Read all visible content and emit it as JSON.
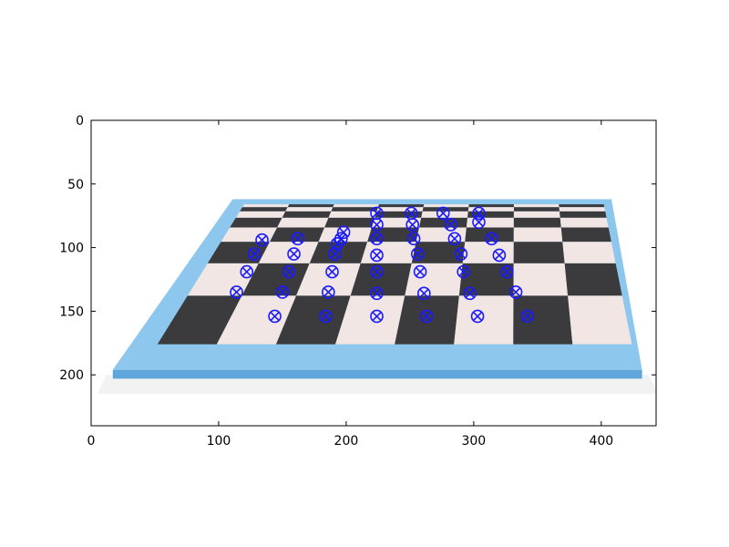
{
  "chart_data": {
    "type": "scatter",
    "title": "",
    "xlabel": "",
    "ylabel": "",
    "xlim": [
      0,
      443
    ],
    "ylim": [
      240,
      0
    ],
    "x_ticks": [
      0,
      100,
      200,
      300,
      400
    ],
    "y_ticks": [
      0,
      50,
      100,
      150,
      200
    ],
    "x_tick_labels": [
      "0",
      "100",
      "200",
      "300",
      "400"
    ],
    "y_tick_labels": [
      "0",
      "50",
      "100",
      "150",
      "200"
    ],
    "grid": false,
    "background_image": "checkerboard-perspective",
    "board": {
      "frame_color": "#8ec7ee",
      "frame_dark": "#5fa6dc",
      "dark_square": "#3b3b3d",
      "light_square": "#f1e6e3",
      "outer_corners": [
        [
          111,
          62
        ],
        [
          408,
          62
        ],
        [
          432,
          196
        ],
        [
          17,
          196
        ]
      ],
      "inner_corners": [
        [
          120,
          66
        ],
        [
          402,
          66
        ],
        [
          424,
          176
        ],
        [
          52,
          176
        ]
      ],
      "rows": 8,
      "cols": 8
    },
    "marker": {
      "shape": "circle-x",
      "color": "#1a1aff"
    },
    "series": [
      {
        "points": [
          [
            224,
            73
          ],
          [
            251,
            73
          ],
          [
            276,
            73
          ],
          [
            304,
            73
          ],
          [
            224,
            82
          ],
          [
            252,
            82
          ],
          [
            282,
            82
          ],
          [
            304,
            80
          ],
          [
            198,
            88
          ],
          [
            196,
            93
          ],
          [
            224,
            93
          ],
          [
            253,
            93
          ],
          [
            285,
            93
          ],
          [
            314,
            93
          ],
          [
            162,
            93
          ],
          [
            134,
            94
          ],
          [
            193,
            97
          ],
          [
            128,
            105
          ],
          [
            159,
            105
          ],
          [
            191,
            105
          ],
          [
            224,
            106
          ],
          [
            256,
            105
          ],
          [
            290,
            105
          ],
          [
            320,
            106
          ],
          [
            122,
            119
          ],
          [
            155,
            119
          ],
          [
            189,
            119
          ],
          [
            224,
            119
          ],
          [
            258,
            119
          ],
          [
            292,
            119
          ],
          [
            326,
            119
          ],
          [
            114,
            135
          ],
          [
            150,
            135
          ],
          [
            186,
            135
          ],
          [
            224,
            136
          ],
          [
            261,
            136
          ],
          [
            297,
            136
          ],
          [
            333,
            135
          ],
          [
            144,
            154
          ],
          [
            184,
            154
          ],
          [
            224,
            154
          ],
          [
            263,
            154
          ],
          [
            303,
            154
          ],
          [
            342,
            154
          ]
        ]
      }
    ]
  }
}
